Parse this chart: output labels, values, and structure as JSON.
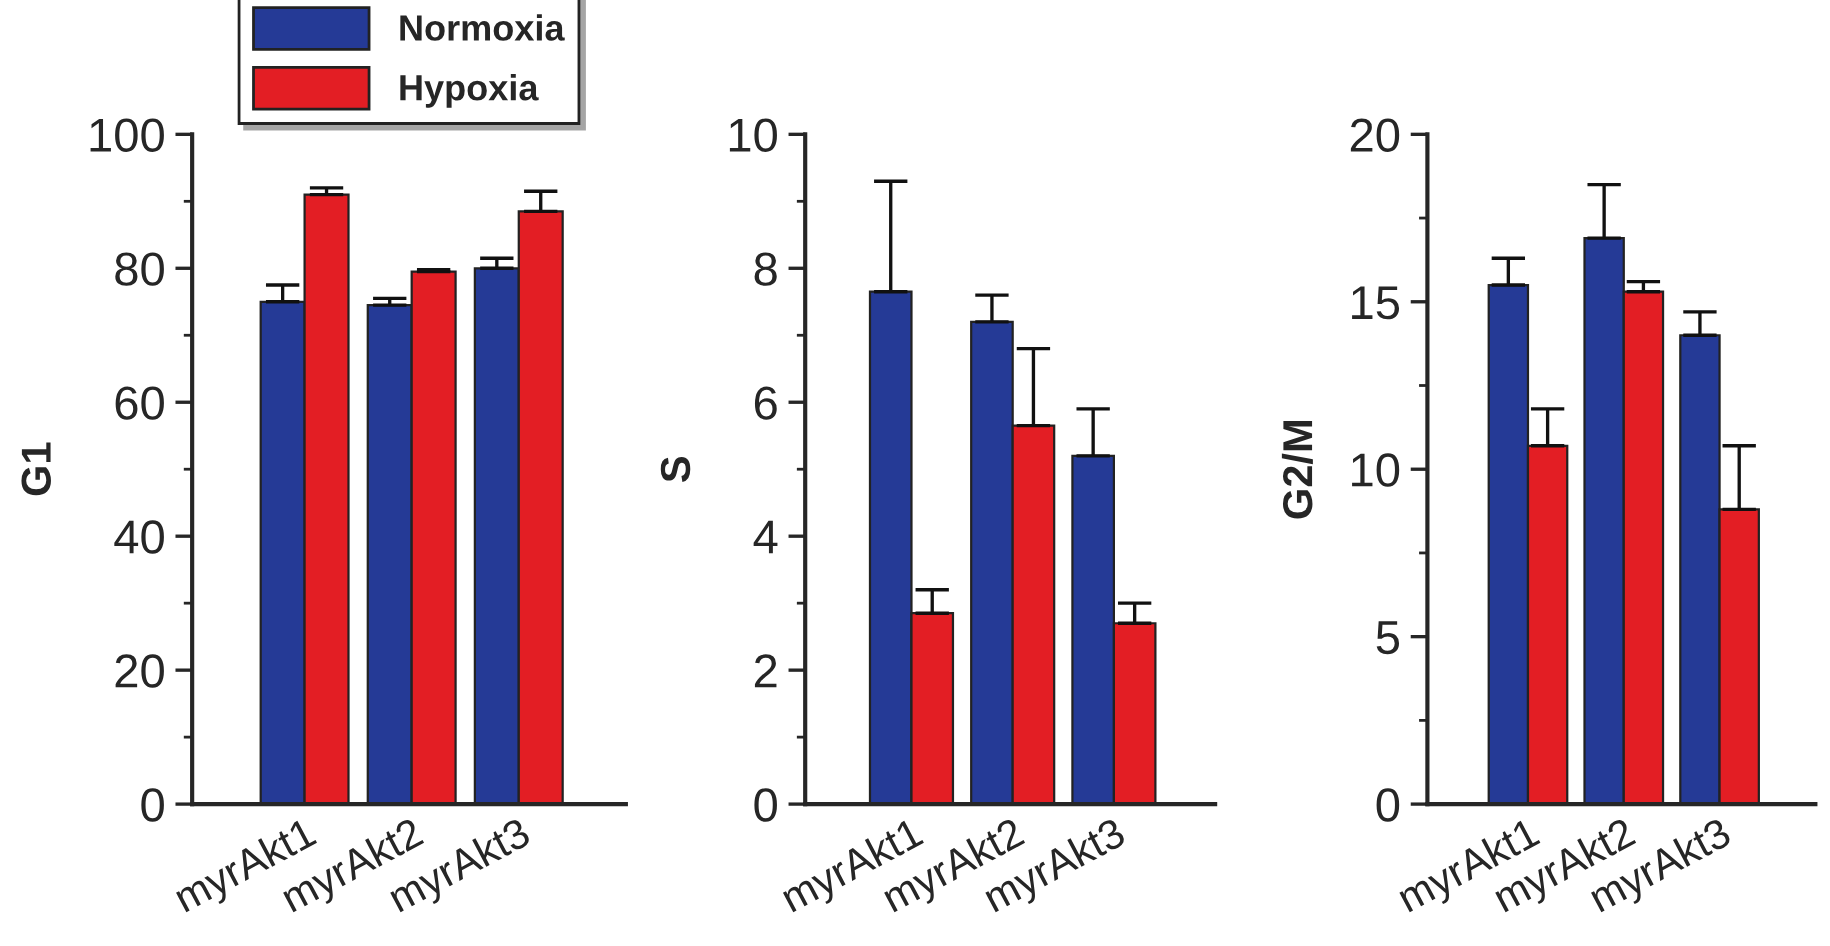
{
  "chart_data": [
    {
      "type": "bar",
      "ylabel": "G1",
      "categories": [
        "myrAkt1",
        "myrAkt2",
        "myrAkt3"
      ],
      "ylim": [
        0,
        100
      ],
      "yticks": [
        0,
        20,
        40,
        60,
        80,
        100
      ],
      "legend": "top",
      "grid": false,
      "series": [
        {
          "name": "Normoxia",
          "color": "#253a96",
          "values": [
            75,
            74.5,
            80
          ],
          "errors": [
            [
              75,
              77.5
            ],
            [
              74.5,
              75.5
            ],
            [
              80,
              81.5
            ]
          ]
        },
        {
          "name": "Hypoxia",
          "color": "#e31e24",
          "values": [
            91,
            79.5,
            88.5
          ],
          "errors": [
            [
              91,
              92
            ],
            [
              79.5,
              79.8
            ],
            [
              88.5,
              91.5
            ]
          ]
        }
      ]
    },
    {
      "type": "bar",
      "ylabel": "S",
      "categories": [
        "myrAkt1",
        "myrAkt2",
        "myrAkt3"
      ],
      "ylim": [
        0,
        10
      ],
      "yticks": [
        0,
        2,
        4,
        6,
        8,
        10
      ],
      "grid": false,
      "series": [
        {
          "color": "#253a96",
          "values": [
            7.65,
            7.2,
            5.2
          ],
          "errors": [
            [
              7.65,
              9.3
            ],
            [
              7.2,
              7.6
            ],
            [
              5.2,
              5.9
            ]
          ]
        },
        {
          "color": "#e31e24",
          "values": [
            2.85,
            5.65,
            2.7
          ],
          "errors": [
            [
              2.85,
              3.2
            ],
            [
              5.65,
              6.8
            ],
            [
              2.7,
              3.0
            ]
          ]
        }
      ]
    },
    {
      "type": "bar",
      "ylabel": "G2/M",
      "categories": [
        "myrAkt1",
        "myrAkt2",
        "myrAkt3"
      ],
      "ylim": [
        0,
        20
      ],
      "yticks": [
        0,
        5,
        10,
        15,
        20
      ],
      "grid": false,
      "series": [
        {
          "color": "#253a96",
          "values": [
            15.5,
            16.9,
            14
          ],
          "errors": [
            [
              15.5,
              16.3
            ],
            [
              16.9,
              18.5
            ],
            [
              14,
              14.7
            ]
          ]
        },
        {
          "color": "#e31e24",
          "values": [
            10.7,
            15.3,
            8.8
          ],
          "errors": [
            [
              10.7,
              11.8
            ],
            [
              15.3,
              15.6
            ],
            [
              8.8,
              10.7
            ]
          ]
        }
      ]
    }
  ]
}
